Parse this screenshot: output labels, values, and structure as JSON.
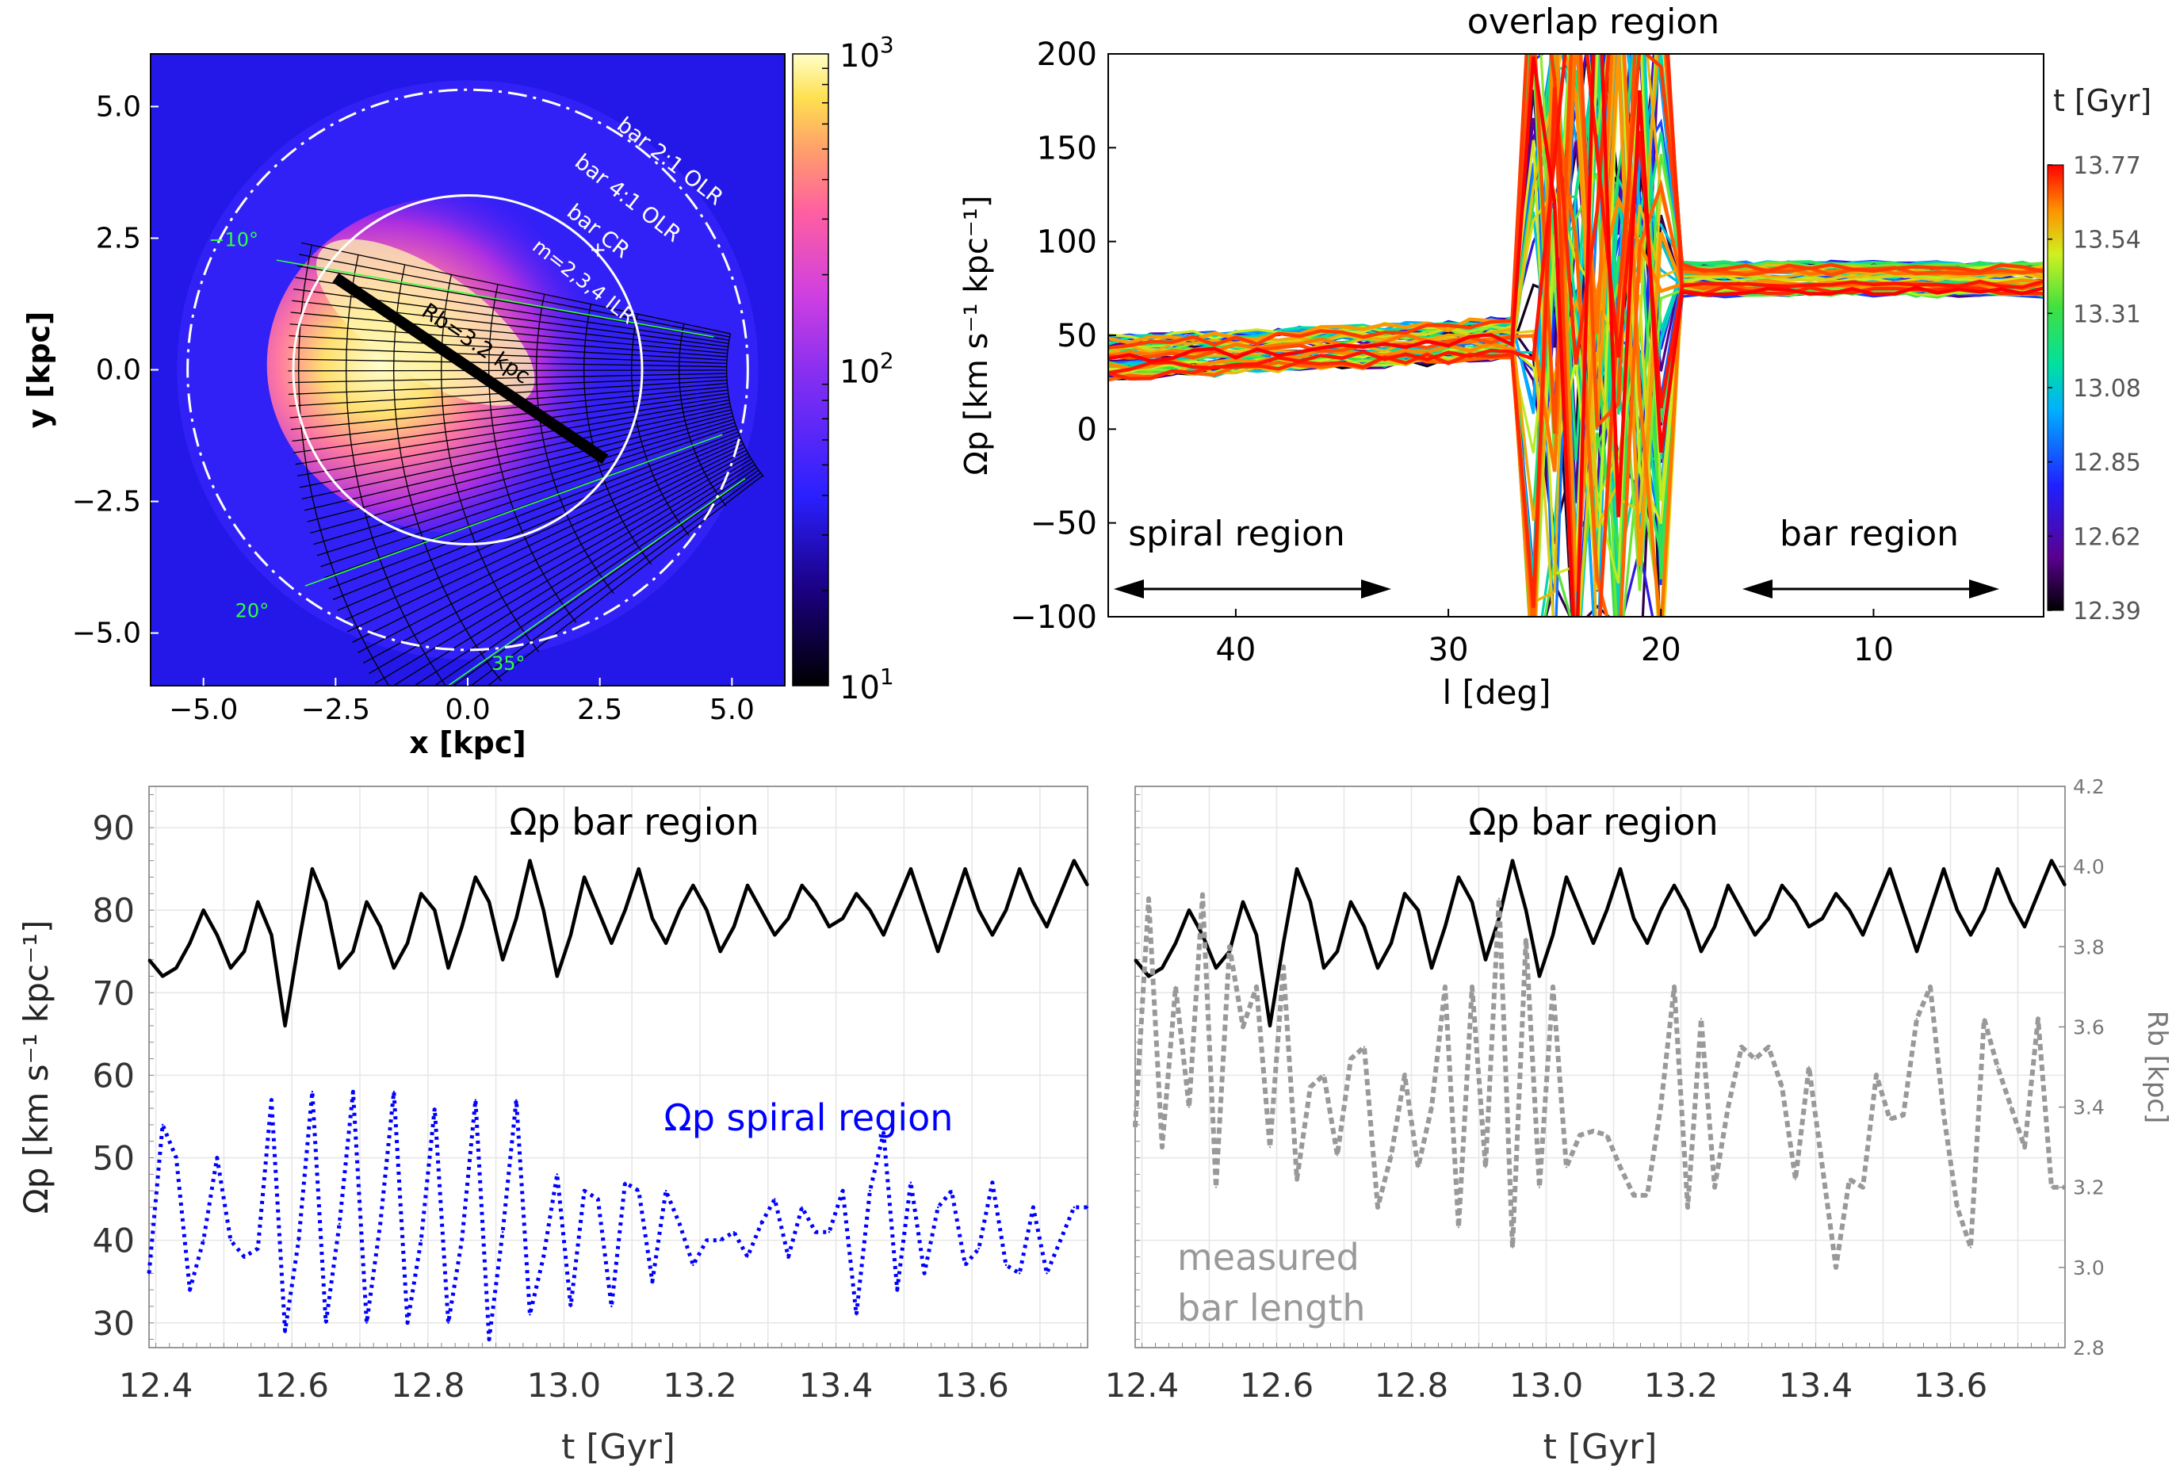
{
  "chart_data": [
    {
      "type": "heatmap",
      "panel": "top-left",
      "xlabel": "x [kpc]",
      "ylabel": "y [kpc]",
      "xlim": [
        -6,
        6
      ],
      "ylim": [
        -6,
        6
      ],
      "xticks": [
        "−5.0",
        "−2.5",
        "0.0",
        "2.5",
        "5.0"
      ],
      "xtick_values": [
        -5,
        -2.5,
        0,
        2.5,
        5
      ],
      "yticks": [
        "5.0",
        "2.5",
        "0.0",
        "−2.5",
        "−5.0"
      ],
      "ytick_values": [
        5,
        2.5,
        0,
        -2.5,
        -5
      ],
      "colorbar": {
        "scale": "log",
        "range": [
          10,
          1000
        ],
        "ticks": [
          {
            "base": "10",
            "exp": "3",
            "value": 1000
          },
          {
            "base": "10",
            "exp": "2",
            "value": 100
          },
          {
            "base": "10",
            "exp": "1",
            "value": 10
          }
        ],
        "colors": [
          "#000000",
          "#1a0080",
          "#2a20ff",
          "#8a2ff0",
          "#d040e0",
          "#ff5fa0",
          "#ffa06a",
          "#ffe050",
          "#ffffc8"
        ]
      },
      "bar": {
        "length_kpc": 3.2,
        "x1": -2.5,
        "y1": 1.75,
        "x2": 2.6,
        "y2": -1.7
      },
      "circles": [
        {
          "label": "bar 2:1 OLR",
          "radius_kpc": 5.3,
          "style": "dash-dot"
        },
        {
          "label": "bar CR",
          "radius_kpc": 3.3,
          "style": "solid"
        }
      ],
      "annotations": {
        "bar_2_1_olr": "bar 2:1 OLR",
        "bar_4_1_olr": "bar 4:1 OLR",
        "bar_cr": "bar CR",
        "plus": "+",
        "m_ilr": "m=2,3,4 ILR",
        "rb_label": "Rb=3.2 kpc",
        "angle_m10": "−10°",
        "angle_20": "20°",
        "angle_35": "35°"
      },
      "los_angles_deg": [
        -10,
        20,
        35
      ]
    },
    {
      "type": "line",
      "panel": "top-right",
      "title": "overlap region",
      "xlabel": "l [deg]",
      "ylabel": "Ωp [km s⁻¹ kpc⁻¹]",
      "xlim": [
        46,
        2
      ],
      "ylim": [
        -100,
        200
      ],
      "xticks": [
        "40",
        "30",
        "20",
        "10"
      ],
      "xtick_values": [
        40,
        30,
        20,
        10
      ],
      "yticks": [
        "200",
        "150",
        "100",
        "50",
        "0",
        "−50",
        "−100"
      ],
      "ytick_values": [
        200,
        150,
        100,
        50,
        0,
        -50,
        -100
      ],
      "annotations": {
        "spiral": "spiral region",
        "bar": "bar region"
      },
      "colorbar": {
        "title": "t [Gyr]",
        "ticks": [
          "13.77",
          "13.54",
          "13.31",
          "13.08",
          "12.85",
          "12.62",
          "12.39"
        ],
        "range": [
          12.39,
          13.77
        ],
        "colors": [
          "#000000",
          "#5a0090",
          "#2020ff",
          "#00b0ff",
          "#00e0a0",
          "#40e040",
          "#d0f020",
          "#ff9000",
          "#ff0000"
        ]
      },
      "spiral_region": {
        "l_range": [
          46,
          26
        ],
        "omega_p_range": [
          25,
          50
        ],
        "mean": 38
      },
      "bar_region": {
        "l_range": [
          19,
          2
        ],
        "omega_p_range": [
          70,
          90
        ],
        "mean": 80
      },
      "overlap_region_l": [
        27,
        19
      ],
      "n_curves": 60
    },
    {
      "type": "line",
      "panel": "bottom-left",
      "xlabel": "t [Gyr]",
      "ylabel": "Ωp [km s⁻¹ kpc⁻¹]",
      "xlim": [
        12.39,
        13.77
      ],
      "ylim": [
        27,
        95
      ],
      "xticks": [
        "12.4",
        "12.6",
        "12.8",
        "13.0",
        "13.2",
        "13.4",
        "13.6"
      ],
      "xtick_values": [
        12.4,
        12.6,
        12.8,
        13.0,
        13.2,
        13.4,
        13.6
      ],
      "yticks": [
        "90",
        "80",
        "70",
        "60",
        "50",
        "40",
        "30"
      ],
      "ytick_values": [
        90,
        80,
        70,
        60,
        50,
        40,
        30
      ],
      "grid": true,
      "series": [
        {
          "name": "Ωp bar region",
          "color": "#000000",
          "style": "solid",
          "x": [
            12.39,
            12.41,
            12.43,
            12.45,
            12.47,
            12.49,
            12.51,
            12.53,
            12.55,
            12.57,
            12.59,
            12.61,
            12.63,
            12.65,
            12.67,
            12.69,
            12.71,
            12.73,
            12.75,
            12.77,
            12.79,
            12.81,
            12.83,
            12.85,
            12.87,
            12.89,
            12.91,
            12.93,
            12.95,
            12.97,
            12.99,
            13.01,
            13.03,
            13.05,
            13.07,
            13.09,
            13.11,
            13.13,
            13.15,
            13.17,
            13.19,
            13.21,
            13.23,
            13.25,
            13.27,
            13.29,
            13.31,
            13.33,
            13.35,
            13.37,
            13.39,
            13.41,
            13.43,
            13.45,
            13.47,
            13.49,
            13.51,
            13.53,
            13.55,
            13.57,
            13.59,
            13.61,
            13.63,
            13.65,
            13.67,
            13.69,
            13.71,
            13.73,
            13.75,
            13.77
          ],
          "values": [
            74,
            72,
            73,
            76,
            80,
            77,
            73,
            75,
            81,
            77,
            66,
            76,
            85,
            81,
            73,
            75,
            81,
            78,
            73,
            76,
            82,
            80,
            73,
            78,
            84,
            81,
            74,
            79,
            86,
            80,
            72,
            77,
            84,
            80,
            76,
            80,
            85,
            79,
            76,
            80,
            83,
            80,
            75,
            78,
            83,
            80,
            77,
            79,
            83,
            81,
            78,
            79,
            82,
            80,
            77,
            81,
            85,
            80,
            75,
            80,
            85,
            80,
            77,
            80,
            85,
            81,
            78,
            82,
            86,
            83
          ]
        },
        {
          "name": "Ωp spiral region",
          "color": "#0000ff",
          "style": "dotted",
          "x": [
            12.39,
            12.41,
            12.43,
            12.45,
            12.47,
            12.49,
            12.51,
            12.53,
            12.55,
            12.57,
            12.59,
            12.61,
            12.63,
            12.65,
            12.67,
            12.69,
            12.71,
            12.73,
            12.75,
            12.77,
            12.79,
            12.81,
            12.83,
            12.85,
            12.87,
            12.89,
            12.91,
            12.93,
            12.95,
            12.97,
            12.99,
            13.01,
            13.03,
            13.05,
            13.07,
            13.09,
            13.11,
            13.13,
            13.15,
            13.17,
            13.19,
            13.21,
            13.23,
            13.25,
            13.27,
            13.29,
            13.31,
            13.33,
            13.35,
            13.37,
            13.39,
            13.41,
            13.43,
            13.45,
            13.47,
            13.49,
            13.51,
            13.53,
            13.55,
            13.57,
            13.59,
            13.61,
            13.63,
            13.65,
            13.67,
            13.69,
            13.71,
            13.73,
            13.75,
            13.77
          ],
          "values": [
            36,
            54,
            50,
            34,
            40,
            50,
            40,
            38,
            39,
            57,
            29,
            40,
            58,
            30,
            42,
            58,
            30,
            42,
            58,
            30,
            40,
            56,
            30,
            40,
            57,
            28,
            41,
            57,
            31,
            38,
            48,
            32,
            46,
            45,
            32,
            47,
            46,
            35,
            46,
            42,
            37,
            40,
            40,
            41,
            38,
            42,
            45,
            38,
            44,
            41,
            41,
            46,
            31,
            46,
            53,
            34,
            47,
            36,
            44,
            46,
            37,
            39,
            47,
            37,
            36,
            44,
            36,
            40,
            44,
            44
          ]
        }
      ],
      "annotations": {
        "bar_label": "Ωp bar region",
        "spiral_label": "Ωp spiral region"
      }
    },
    {
      "type": "line",
      "panel": "bottom-right",
      "xlabel": "t [Gyr]",
      "ylabel_right": "Rb [kpc]",
      "xlim": [
        12.39,
        13.77
      ],
      "ylim": [
        27,
        95
      ],
      "y2lim": [
        2.8,
        4.2
      ],
      "xticks": [
        "12.4",
        "12.6",
        "12.8",
        "13.0",
        "13.2",
        "13.4",
        "13.6"
      ],
      "xtick_values": [
        12.4,
        12.6,
        12.8,
        13.0,
        13.2,
        13.4,
        13.6
      ],
      "y2ticks": [
        "4.2",
        "4.0",
        "3.8",
        "3.6",
        "3.4",
        "3.2",
        "3.0",
        "2.8"
      ],
      "y2tick_values": [
        4.2,
        4.0,
        3.8,
        3.6,
        3.4,
        3.2,
        3.0,
        2.8
      ],
      "grid": true,
      "series": [
        {
          "name": "Ωp bar region",
          "color": "#000000",
          "style": "solid",
          "x": [
            12.39,
            12.41,
            12.43,
            12.45,
            12.47,
            12.49,
            12.51,
            12.53,
            12.55,
            12.57,
            12.59,
            12.61,
            12.63,
            12.65,
            12.67,
            12.69,
            12.71,
            12.73,
            12.75,
            12.77,
            12.79,
            12.81,
            12.83,
            12.85,
            12.87,
            12.89,
            12.91,
            12.93,
            12.95,
            12.97,
            12.99,
            13.01,
            13.03,
            13.05,
            13.07,
            13.09,
            13.11,
            13.13,
            13.15,
            13.17,
            13.19,
            13.21,
            13.23,
            13.25,
            13.27,
            13.29,
            13.31,
            13.33,
            13.35,
            13.37,
            13.39,
            13.41,
            13.43,
            13.45,
            13.47,
            13.49,
            13.51,
            13.53,
            13.55,
            13.57,
            13.59,
            13.61,
            13.63,
            13.65,
            13.67,
            13.69,
            13.71,
            13.73,
            13.75,
            13.77
          ],
          "values": [
            74,
            72,
            73,
            76,
            80,
            77,
            73,
            75,
            81,
            77,
            66,
            76,
            85,
            81,
            73,
            75,
            81,
            78,
            73,
            76,
            82,
            80,
            73,
            78,
            84,
            81,
            74,
            79,
            86,
            80,
            72,
            77,
            84,
            80,
            76,
            80,
            85,
            79,
            76,
            80,
            83,
            80,
            75,
            78,
            83,
            80,
            77,
            79,
            83,
            81,
            78,
            79,
            82,
            80,
            77,
            81,
            85,
            80,
            75,
            80,
            85,
            80,
            77,
            80,
            85,
            81,
            78,
            82,
            86,
            83
          ]
        },
        {
          "name": "measured bar length",
          "color": "#999999",
          "style": "dashed",
          "axis": "right",
          "x": [
            12.39,
            12.41,
            12.43,
            12.45,
            12.47,
            12.49,
            12.51,
            12.53,
            12.55,
            12.57,
            12.59,
            12.61,
            12.63,
            12.65,
            12.67,
            12.69,
            12.71,
            12.73,
            12.75,
            12.77,
            12.79,
            12.81,
            12.83,
            12.85,
            12.87,
            12.89,
            12.91,
            12.93,
            12.95,
            12.97,
            12.99,
            13.01,
            13.03,
            13.05,
            13.07,
            13.09,
            13.11,
            13.13,
            13.15,
            13.17,
            13.19,
            13.21,
            13.23,
            13.25,
            13.27,
            13.29,
            13.31,
            13.33,
            13.35,
            13.37,
            13.39,
            13.41,
            13.43,
            13.45,
            13.47,
            13.49,
            13.51,
            13.53,
            13.55,
            13.57,
            13.59,
            13.61,
            13.63,
            13.65,
            13.67,
            13.69,
            13.71,
            13.73,
            13.75,
            13.77
          ],
          "values": [
            3.35,
            3.92,
            3.3,
            3.7,
            3.4,
            3.93,
            3.2,
            3.8,
            3.6,
            3.7,
            3.3,
            3.75,
            3.22,
            3.45,
            3.48,
            3.28,
            3.52,
            3.55,
            3.15,
            3.28,
            3.48,
            3.25,
            3.4,
            3.7,
            3.1,
            3.7,
            3.25,
            3.92,
            3.05,
            3.82,
            3.2,
            3.7,
            3.25,
            3.33,
            3.34,
            3.33,
            3.25,
            3.18,
            3.18,
            3.4,
            3.7,
            3.15,
            3.62,
            3.2,
            3.4,
            3.55,
            3.52,
            3.55,
            3.45,
            3.22,
            3.5,
            3.25,
            3.0,
            3.22,
            3.2,
            3.48,
            3.37,
            3.38,
            3.62,
            3.7,
            3.38,
            3.15,
            3.05,
            3.62,
            3.5,
            3.4,
            3.3,
            3.62,
            3.2,
            3.2
          ]
        }
      ],
      "annotations": {
        "bar_label": "Ωp bar region",
        "measured_line1": "measured",
        "measured_line2": "bar length"
      }
    }
  ]
}
